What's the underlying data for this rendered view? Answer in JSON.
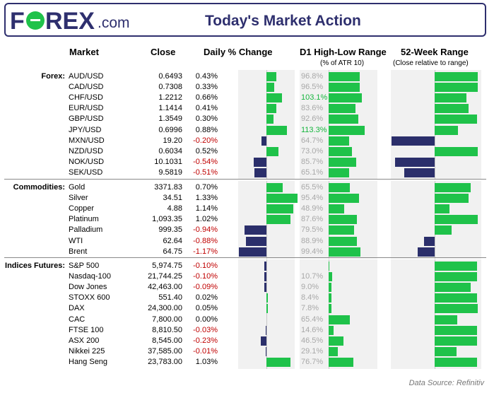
{
  "header": {
    "logo_text": "FOREX",
    "logo_suffix": ".com",
    "title": "Today's Market Action"
  },
  "columns": {
    "market": "Market",
    "close": "Close",
    "daily": "Daily % Change",
    "d1": "D1 High-Low Range",
    "d1_sub": "(% of ATR 10)",
    "wk52": "52-Week Range",
    "wk52_sub": "(Close relative to range)"
  },
  "sections": [
    {
      "label": "Forex:"
    },
    {
      "label": "Commodities:"
    },
    {
      "label": "Indices Futures:"
    }
  ],
  "colors": {
    "positive": "#1fc24a",
    "negative": "#2b2f6b",
    "brand": "#2e2f6e",
    "negative_text": "#c00000"
  },
  "source": "Data Source: Refinitiv",
  "chart_data": {
    "type": "table",
    "rows": [
      {
        "section": 0,
        "market": "AUD/USD",
        "close": "0.6493",
        "daily_pct": 0.43,
        "daily_label": "0.43%",
        "range_pct": 96.8,
        "range_label": "96.8%",
        "wk52": 0.98
      },
      {
        "section": 0,
        "market": "CAD/USD",
        "close": "0.7308",
        "daily_pct": 0.33,
        "daily_label": "0.33%",
        "range_pct": 96.5,
        "range_label": "96.5%",
        "wk52": 0.99
      },
      {
        "section": 0,
        "market": "CHF/USD",
        "close": "1.2212",
        "daily_pct": 0.66,
        "daily_label": "0.66%",
        "range_pct": 103.1,
        "range_label": "103.1%",
        "wk52": 0.72
      },
      {
        "section": 0,
        "market": "EUR/USD",
        "close": "1.1414",
        "daily_pct": 0.41,
        "daily_label": "0.41%",
        "range_pct": 83.6,
        "range_label": "83.6%",
        "wk52": 0.78
      },
      {
        "section": 0,
        "market": "GBP/USD",
        "close": "1.3549",
        "daily_pct": 0.3,
        "daily_label": "0.30%",
        "range_pct": 92.6,
        "range_label": "92.6%",
        "wk52": 0.96
      },
      {
        "section": 0,
        "market": "JPY/USD",
        "close": "0.6996",
        "daily_pct": 0.88,
        "daily_label": "0.88%",
        "range_pct": 113.3,
        "range_label": "113.3%",
        "wk52": 0.54
      },
      {
        "section": 0,
        "market": "MXN/USD",
        "close": "19.20",
        "daily_pct": -0.2,
        "daily_label": "-0.20%",
        "range_pct": 64.7,
        "range_label": "64.7%",
        "wk52": -0.98
      },
      {
        "section": 0,
        "market": "NZD/USD",
        "close": "0.6034",
        "daily_pct": 0.52,
        "daily_label": "0.52%",
        "range_pct": 73.0,
        "range_label": "73.0%",
        "wk52": 0.98
      },
      {
        "section": 0,
        "market": "NOK/USD",
        "close": "10.1031",
        "daily_pct": -0.54,
        "daily_label": "-0.54%",
        "range_pct": 85.7,
        "range_label": "85.7%",
        "wk52": -0.9
      },
      {
        "section": 0,
        "market": "SEK/USD",
        "close": "9.5819",
        "daily_pct": -0.51,
        "daily_label": "-0.51%",
        "range_pct": 65.1,
        "range_label": "65.1%",
        "wk52": -0.7
      },
      {
        "section": 1,
        "market": "Gold",
        "close": "3371.83",
        "daily_pct": 0.7,
        "daily_label": "0.70%",
        "range_pct": 65.5,
        "range_label": "65.5%",
        "wk52": 0.82
      },
      {
        "section": 1,
        "market": "Silver",
        "close": "34.51",
        "daily_pct": 1.33,
        "daily_label": "1.33%",
        "range_pct": 95.4,
        "range_label": "95.4%",
        "wk52": 0.77
      },
      {
        "section": 1,
        "market": "Copper",
        "close": "4.88",
        "daily_pct": 1.14,
        "daily_label": "1.14%",
        "range_pct": 48.9,
        "range_label": "48.9%",
        "wk52": 0.34
      },
      {
        "section": 1,
        "market": "Platinum",
        "close": "1,093.35",
        "daily_pct": 1.02,
        "daily_label": "1.02%",
        "range_pct": 87.6,
        "range_label": "87.6%",
        "wk52": 0.98
      },
      {
        "section": 1,
        "market": "Palladium",
        "close": "999.35",
        "daily_pct": -0.94,
        "daily_label": "-0.94%",
        "range_pct": 79.5,
        "range_label": "79.5%",
        "wk52": 0.38
      },
      {
        "section": 1,
        "market": "WTI",
        "close": "62.64",
        "daily_pct": -0.88,
        "daily_label": "-0.88%",
        "range_pct": 88.9,
        "range_label": "88.9%",
        "wk52": -0.24
      },
      {
        "section": 1,
        "market": "Brent",
        "close": "64.75",
        "daily_pct": -1.17,
        "daily_label": "-1.17%",
        "range_pct": 99.4,
        "range_label": "99.4%",
        "wk52": -0.38
      },
      {
        "section": 2,
        "market": "S&P 500",
        "close": "5,974.75",
        "daily_pct": -0.1,
        "daily_label": "-0.10%",
        "range_pct": 0,
        "range_label": "",
        "wk52": 0.96
      },
      {
        "section": 2,
        "market": "Nasdaq-100",
        "close": "21,744.25",
        "daily_pct": -0.1,
        "daily_label": "-0.10%",
        "range_pct": 10.7,
        "range_label": "10.7%",
        "wk52": 0.96
      },
      {
        "section": 2,
        "market": "Dow Jones",
        "close": "42,463.00",
        "daily_pct": -0.09,
        "daily_label": "-0.09%",
        "range_pct": 9.0,
        "range_label": "9.0%",
        "wk52": 0.82
      },
      {
        "section": 2,
        "market": "STOXX 600",
        "close": "551.40",
        "daily_pct": 0.02,
        "daily_label": "0.02%",
        "range_pct": 8.4,
        "range_label": "8.4%",
        "wk52": 0.96
      },
      {
        "section": 2,
        "market": "DAX",
        "close": "24,300.00",
        "daily_pct": 0.05,
        "daily_label": "0.05%",
        "range_pct": 7.8,
        "range_label": "7.8%",
        "wk52": 0.99
      },
      {
        "section": 2,
        "market": "CAC",
        "close": "7,800.00",
        "daily_pct": 0.0,
        "daily_label": "0.00%",
        "range_pct": 65.4,
        "range_label": "65.4%",
        "wk52": 0.52
      },
      {
        "section": 2,
        "market": "FTSE 100",
        "close": "8,810.50",
        "daily_pct": -0.03,
        "daily_label": "-0.03%",
        "range_pct": 14.6,
        "range_label": "14.6%",
        "wk52": 0.96
      },
      {
        "section": 2,
        "market": "ASX 200",
        "close": "8,545.00",
        "daily_pct": -0.23,
        "daily_label": "-0.23%",
        "range_pct": 46.5,
        "range_label": "46.5%",
        "wk52": 0.96
      },
      {
        "section": 2,
        "market": "Nikkei 225",
        "close": "37,585.00",
        "daily_pct": -0.01,
        "daily_label": "-0.01%",
        "range_pct": 29.1,
        "range_label": "29.1%",
        "wk52": 0.5
      },
      {
        "section": 2,
        "market": "Hang Seng",
        "close": "23,783.00",
        "daily_pct": 1.03,
        "daily_label": "1.03%",
        "range_pct": 76.7,
        "range_label": "76.7%",
        "wk52": 0.96
      }
    ],
    "daily_range": [
      -1.2,
      1.2
    ],
    "range_max": 115,
    "wk52_range": [
      -1,
      1
    ],
    "grid": false
  }
}
